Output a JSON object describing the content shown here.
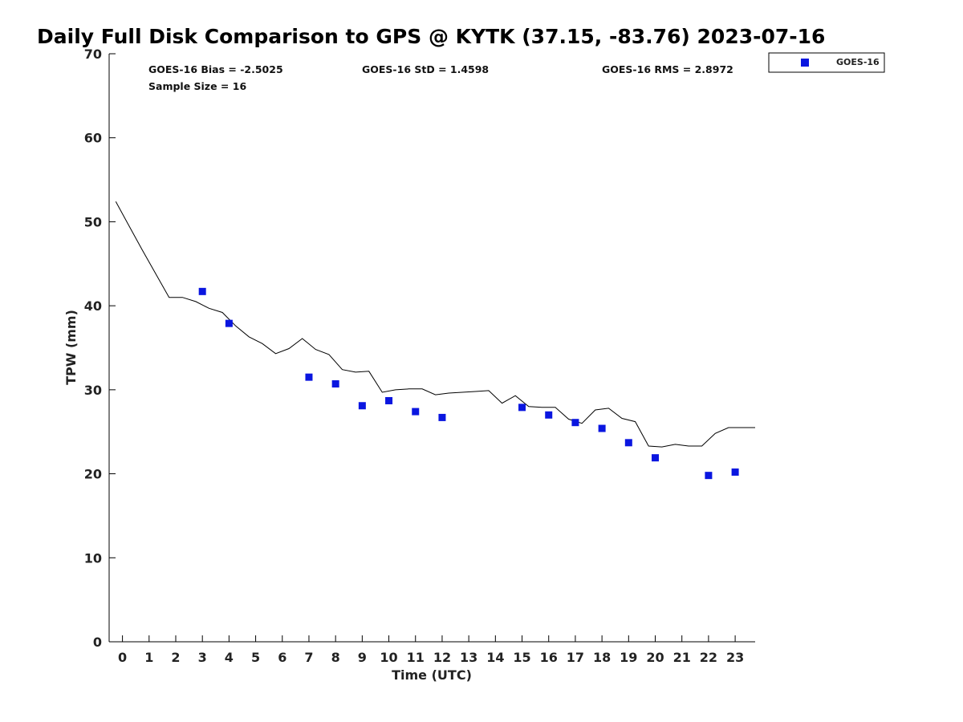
{
  "chart_data": {
    "type": "line",
    "title": "Daily Full Disk Comparison to GPS @ KYTK (37.15, -83.76) 2023-07-16",
    "xlabel": "Time (UTC)",
    "ylabel": "TPW (mm)",
    "xlim": [
      -0.5,
      23.75
    ],
    "ylim": [
      0,
      70
    ],
    "x_ticks": [
      0,
      1,
      2,
      3,
      4,
      5,
      6,
      7,
      8,
      9,
      10,
      11,
      12,
      13,
      14,
      15,
      16,
      17,
      18,
      19,
      20,
      21,
      22,
      23
    ],
    "y_ticks": [
      0,
      10,
      20,
      30,
      40,
      50,
      60,
      70
    ],
    "grid": false,
    "legend_position": "top-right",
    "stats": {
      "bias": "GOES-16 Bias = -2.5025",
      "std": "GOES-16 StD = 1.4598",
      "rms": "GOES-16 RMS = 2.8972",
      "sample": "Sample Size = 16"
    },
    "series": [
      {
        "kind": "line",
        "color": "#000000",
        "x": [
          -0.25,
          0.25,
          0.75,
          1.25,
          1.75,
          2.25,
          2.75,
          3.25,
          3.75,
          4.25,
          4.75,
          5.25,
          5.75,
          6.25,
          6.75,
          7.25,
          7.75,
          8.25,
          8.75,
          9.25,
          9.75,
          10.25,
          10.75,
          11.25,
          11.75,
          12.25,
          12.75,
          13.25,
          13.75,
          14.25,
          14.75,
          15.25,
          15.75,
          16.25,
          16.75,
          17.25,
          17.75,
          18.25,
          18.75,
          19.25,
          19.75,
          20.25,
          20.75,
          21.25,
          21.75,
          22.25,
          22.75,
          23.25,
          23.75
        ],
        "values": [
          52.4,
          49.5,
          46.6,
          43.8,
          41.0,
          41.0,
          40.5,
          39.7,
          39.2,
          37.6,
          36.3,
          35.5,
          34.3,
          34.9,
          36.1,
          34.8,
          34.2,
          32.4,
          32.1,
          32.2,
          29.7,
          30.0,
          30.1,
          30.1,
          29.4,
          29.6,
          29.7,
          29.8,
          29.9,
          28.4,
          29.3,
          28.0,
          27.9,
          27.9,
          26.5,
          26.0,
          27.6,
          27.8,
          26.6,
          26.2,
          23.3,
          23.2,
          23.5,
          23.3,
          23.3,
          24.8,
          25.5,
          25.5,
          25.5
        ]
      },
      {
        "kind": "scatter",
        "name": "GOES-16",
        "color": "#0a16e0",
        "x": [
          3,
          4,
          7,
          8,
          9,
          10,
          11,
          12,
          15,
          16,
          17,
          18,
          19,
          20,
          22,
          23
        ],
        "values": [
          41.7,
          37.9,
          31.5,
          30.7,
          28.1,
          28.7,
          27.4,
          26.7,
          27.9,
          27.0,
          26.1,
          25.4,
          23.7,
          21.9,
          19.8,
          20.2
        ]
      }
    ]
  }
}
